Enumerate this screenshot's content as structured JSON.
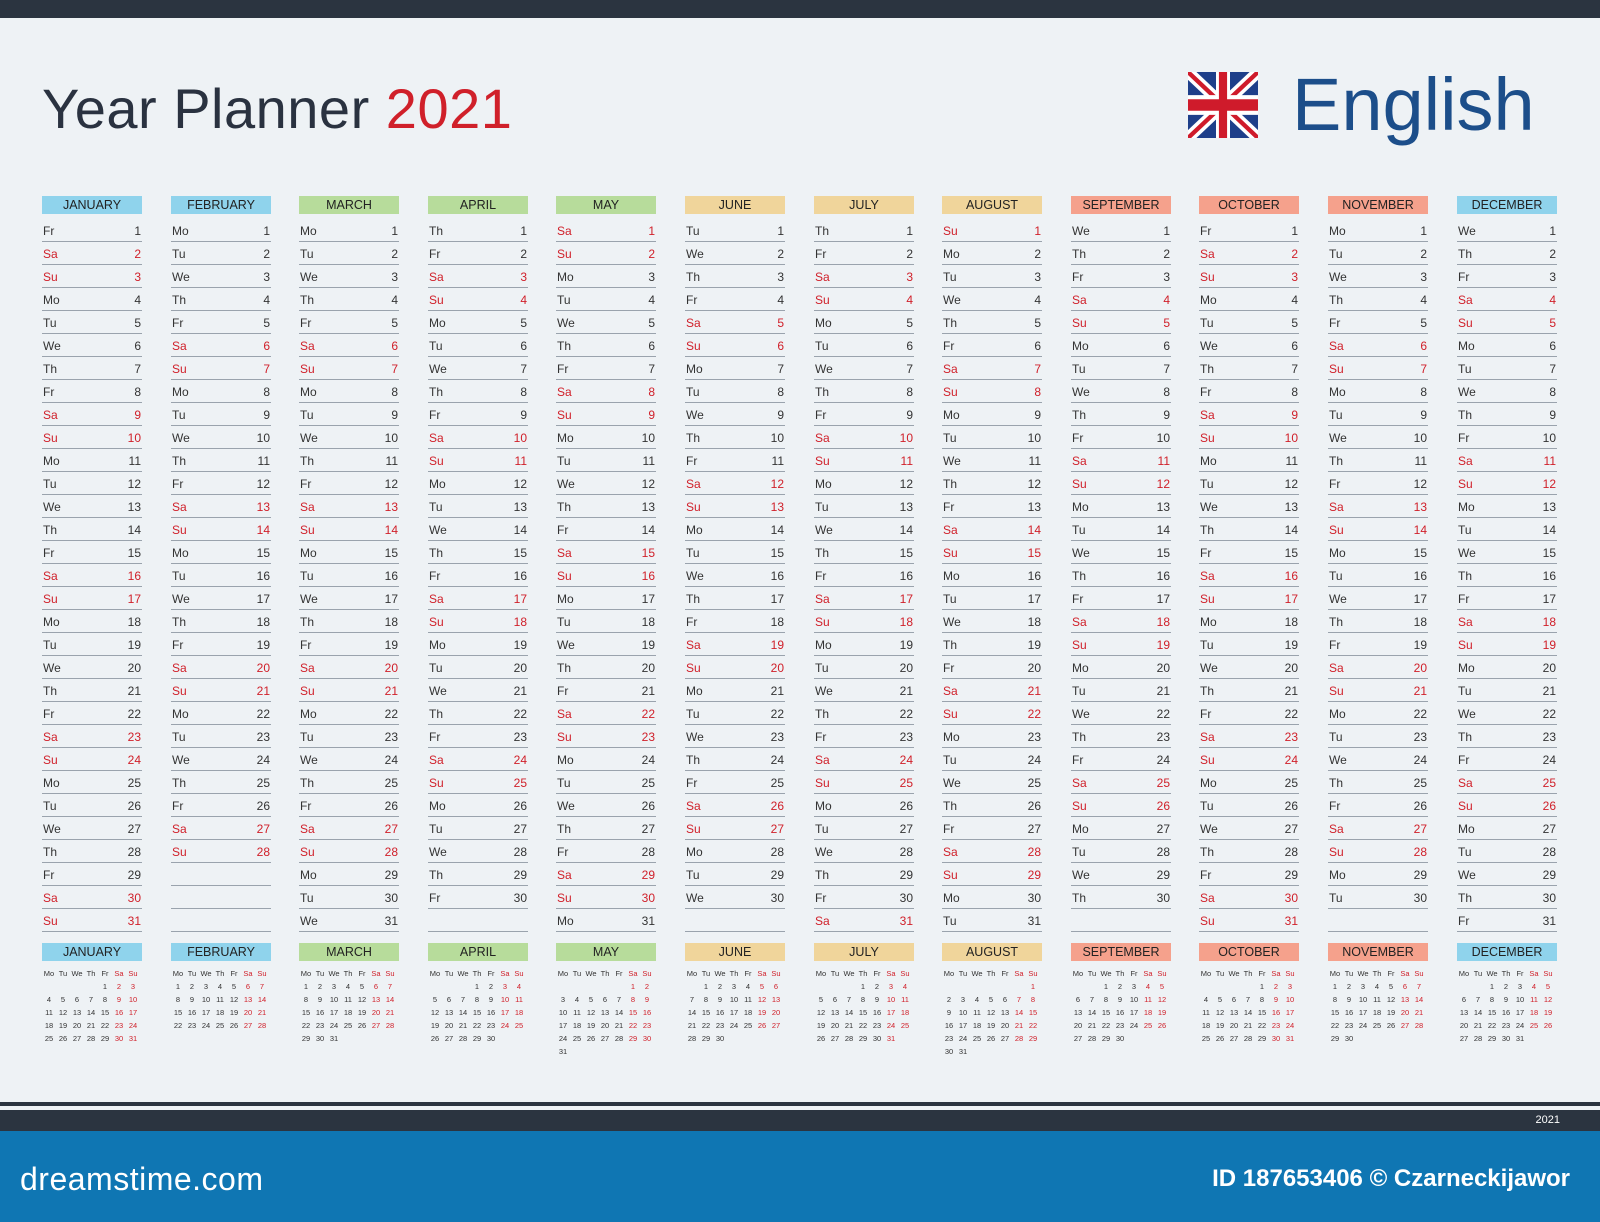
{
  "header": {
    "title": "Year Planner",
    "year": "2021",
    "language": "English"
  },
  "colors": {
    "weekend": "#d0202a",
    "text": "#333333",
    "winter": "#8fd3ec",
    "spring": "#b7dc9b",
    "summer": "#f0d59b",
    "autumn": "#f5a18c"
  },
  "icons": {
    "flag": "uk-flag-icon"
  },
  "weekday_abbr": [
    "Mo",
    "Tu",
    "We",
    "Th",
    "Fr",
    "Sa",
    "Su"
  ],
  "months": [
    {
      "name": "JANUARY",
      "days": 31,
      "start": 4,
      "color": "#8fd3ec"
    },
    {
      "name": "FEBRUARY",
      "days": 28,
      "start": 0,
      "color": "#8fd3ec"
    },
    {
      "name": "MARCH",
      "days": 31,
      "start": 0,
      "color": "#b7dc9b"
    },
    {
      "name": "APRIL",
      "days": 30,
      "start": 3,
      "color": "#b7dc9b"
    },
    {
      "name": "MAY",
      "days": 31,
      "start": 5,
      "color": "#b7dc9b"
    },
    {
      "name": "JUNE",
      "days": 30,
      "start": 1,
      "color": "#f0d59b"
    },
    {
      "name": "JULY",
      "days": 31,
      "start": 3,
      "color": "#f0d59b"
    },
    {
      "name": "AUGUST",
      "days": 31,
      "start": 6,
      "color": "#f0d59b"
    },
    {
      "name": "SEPTEMBER",
      "days": 30,
      "start": 2,
      "color": "#f5a18c"
    },
    {
      "name": "OCTOBER",
      "days": 31,
      "start": 4,
      "color": "#f5a18c"
    },
    {
      "name": "NOVEMBER",
      "days": 30,
      "start": 0,
      "color": "#f5a18c"
    },
    {
      "name": "DECEMBER",
      "days": 31,
      "start": 2,
      "color": "#8fd3ec"
    }
  ],
  "footer": {
    "year": "2021",
    "brand": "dreamstime.com",
    "id_text": "ID 187653406 © Czarneckijawor"
  }
}
